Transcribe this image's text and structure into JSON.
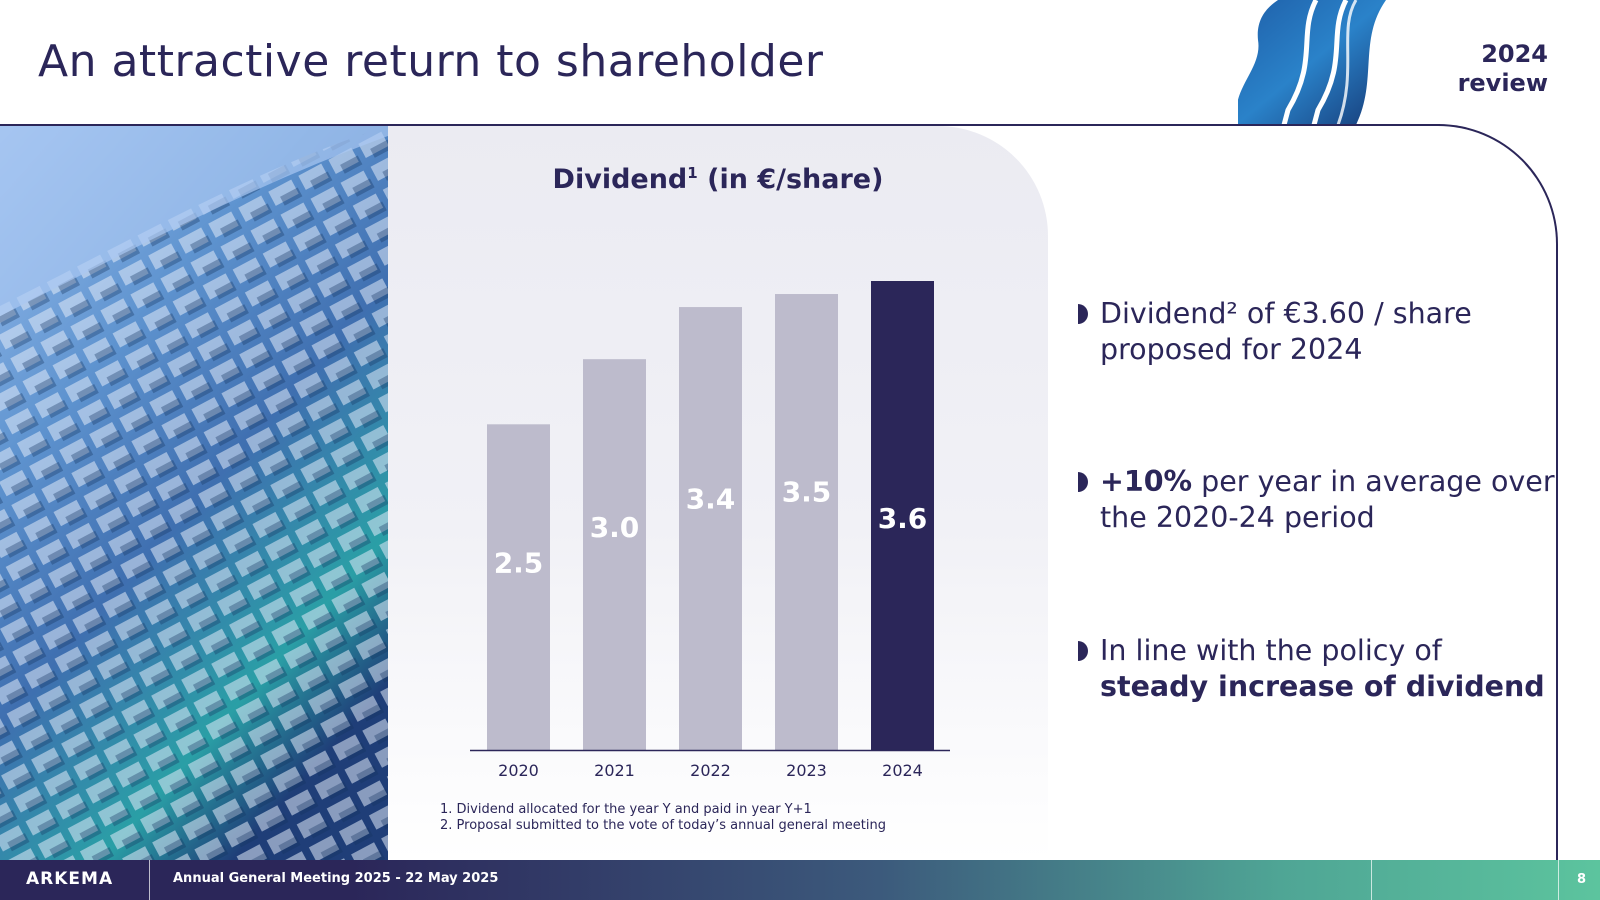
{
  "header": {
    "title": "An attractive return to shareholder",
    "review_line1": "2024",
    "review_line2": "review"
  },
  "chart_data": {
    "type": "bar",
    "title_main": "Dividend",
    "title_sup": "1",
    "title_rest": " (in €/share)",
    "categories": [
      "2020",
      "2021",
      "2022",
      "2023",
      "2024"
    ],
    "values": [
      2.5,
      3.0,
      3.4,
      3.5,
      3.6
    ],
    "labels": [
      "2.5",
      "3.0",
      "3.4",
      "3.5",
      "3.6"
    ],
    "highlight_index": 4,
    "colors": {
      "bar": "#bdbbcc",
      "highlight": "#2b2659",
      "label": "#ffffff",
      "axis": "#2b2659"
    },
    "ylim": [
      0,
      3.6
    ]
  },
  "footnotes": [
    "1. Dividend allocated for the year Y and paid in year Y+1",
    "2. Proposal submitted to the vote of today’s annual general meeting"
  ],
  "bullets": {
    "b1_text": "Dividend² of €3.60 / share proposed for 2024",
    "b2_bold": "+10%",
    "b2_text": " per year in average over the 2020-24 period",
    "b3_text": "In line with the policy of ",
    "b3_bold": "steady increase of dividend"
  },
  "footer": {
    "logo": "ARKEMA",
    "meeting": "Annual General Meeting 2025 - 22 May 2025",
    "page": "8"
  },
  "colors": {
    "brand_navy": "#2b2659",
    "brand_green": "#5cc49e"
  }
}
